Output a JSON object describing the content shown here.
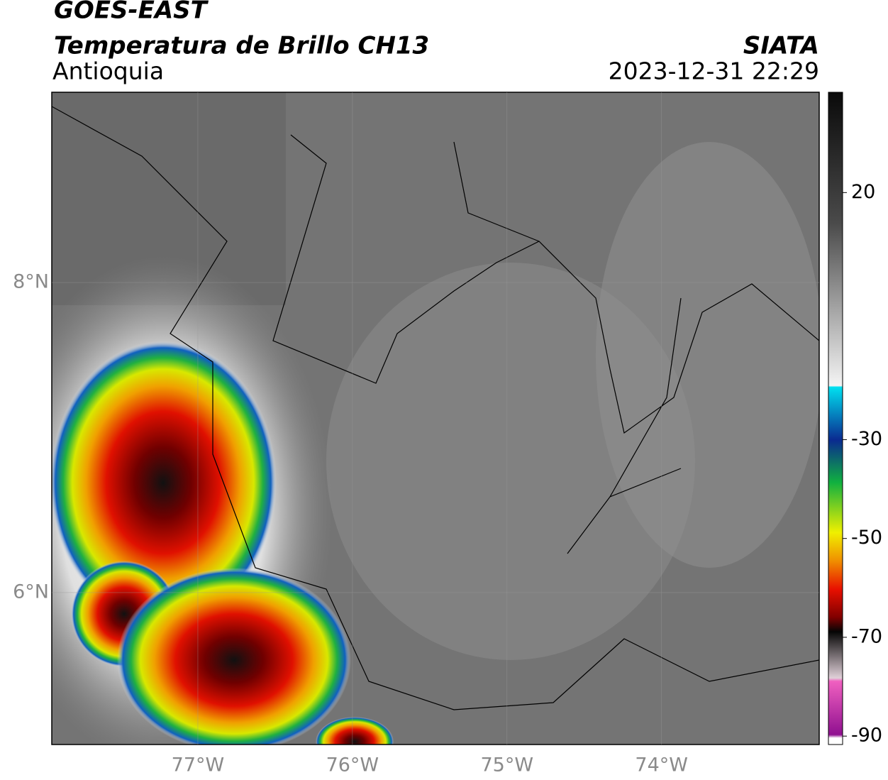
{
  "header": {
    "title": "GOES-EAST",
    "subtitle": "Temperatura de Brillo CH13",
    "region": "Antioquia",
    "source": "SIATA",
    "datetime": "2023-12-31 22:29"
  },
  "map": {
    "xlim": [
      -77.945,
      -72.98
    ],
    "ylim": [
      5.02,
      9.227
    ],
    "xticks": [
      {
        "value": -77,
        "label": "77°W"
      },
      {
        "value": -76,
        "label": "76°W"
      },
      {
        "value": -75,
        "label": "75°W"
      },
      {
        "value": -74,
        "label": "74°W"
      }
    ],
    "yticks": [
      {
        "value": 6,
        "label": "6°N"
      },
      {
        "value": 8,
        "label": "8°N"
      }
    ],
    "grid": true
  },
  "colorbar": {
    "lim": [
      -91.7,
      40.3
    ],
    "ticks": [
      20,
      -30,
      -50,
      -70,
      -90
    ]
  }
}
